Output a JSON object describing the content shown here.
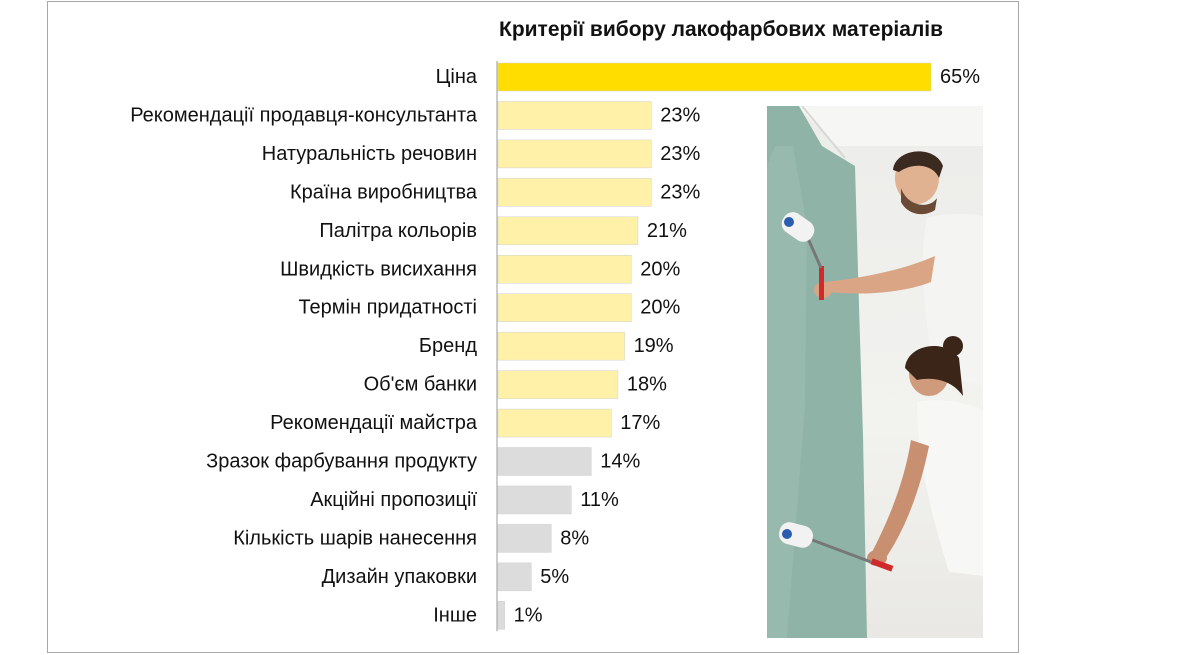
{
  "chart_data": {
    "type": "bar",
    "orientation": "horizontal",
    "title": "Критерії вибору лакофарбових матеріалів",
    "xlabel": "",
    "ylabel": "",
    "xlim": [
      0,
      65
    ],
    "grid": false,
    "legend": "none",
    "value_format": "percent",
    "categories": [
      "Ціна",
      "Рекомендації продавця-консультанта",
      "Натуральність речовин",
      "Країна виробництва",
      "Палітра кольорів",
      "Швидкість висихання",
      "Термін придатності",
      "Бренд",
      "Об'єм банки",
      "Рекомендації майстра",
      "Зразок фарбування продукту",
      "Акційні пропозиції",
      "Кількість шарів нанесення",
      "Дизайн упаковки",
      "Інше"
    ],
    "values": [
      65,
      23,
      23,
      23,
      21,
      20,
      20,
      19,
      18,
      17,
      14,
      11,
      8,
      5,
      1
    ],
    "data_labels": [
      "65%",
      "23%",
      "23%",
      "23%",
      "21%",
      "20%",
      "20%",
      "19%",
      "18%",
      "17%",
      "14%",
      "11%",
      "8%",
      "5%",
      "1%"
    ],
    "bar_colors": [
      "#ffdd00",
      "#fff2a8",
      "#fff2a8",
      "#fff2a8",
      "#fff2a8",
      "#fff2a8",
      "#fff2a8",
      "#fff2a8",
      "#fff2a8",
      "#fff2a8",
      "#dcdcdc",
      "#dcdcdc",
      "#dcdcdc",
      "#dcdcdc",
      "#dcdcdc"
    ]
  },
  "colors": {
    "highlight": "#ffdd00",
    "light_yellow": "#fff2a8",
    "gray": "#dcdcdc",
    "frame_border": "#a8a8a8",
    "wall_paint": "#8fb3a7"
  },
  "image": {
    "subject": "couple-painting-wall-photo"
  }
}
